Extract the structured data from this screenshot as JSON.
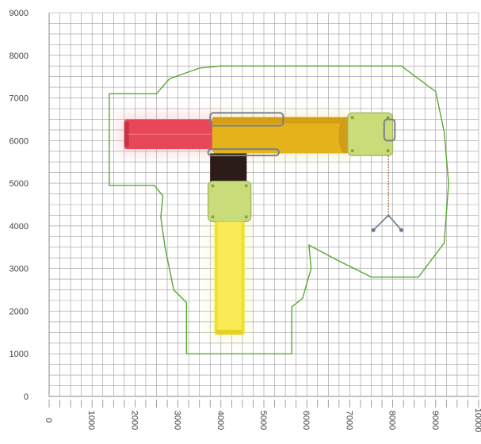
{
  "plan": {
    "x_axis": {
      "min": 0,
      "max": 10000,
      "grid_step": 250,
      "ticks": [
        0,
        1000,
        2000,
        3000,
        4000,
        5000,
        6000,
        7000,
        8000,
        9000,
        10000
      ],
      "tick_labels": [
        "0",
        "1000",
        "2000",
        "3000",
        "4000",
        "5000",
        "6000",
        "7000",
        "8000",
        "9000",
        "10000"
      ]
    },
    "y_axis": {
      "min": 0,
      "max": 9000,
      "grid_step": 250,
      "ticks": [
        0,
        1000,
        2000,
        3000,
        4000,
        5000,
        6000,
        7000,
        8000,
        9000
      ],
      "tick_labels": [
        "0",
        "1000",
        "2000",
        "3000",
        "4000",
        "5000",
        "6000",
        "7000",
        "8000",
        "9000"
      ]
    },
    "colors": {
      "grid": "#9a9a9a",
      "safety_zone": "#5aa832",
      "tunnel_red": "#e8475a",
      "tunnel_yellow": "#e4b21a",
      "slide_yellow": "#f2e02a",
      "panel_green": "#c8dc7a",
      "panel_dark": "#2b1c17",
      "hardware": "#7a7f8c",
      "rope": "#a06a50"
    },
    "components": [
      {
        "name": "red-tube-tunnel",
        "x0": 1750,
        "y0": 5800,
        "x1": 3800,
        "y1": 6500,
        "color": "#e8475a"
      },
      {
        "name": "yellow-tube-tunnel",
        "x0": 3800,
        "y0": 5700,
        "x1": 7000,
        "y1": 6550,
        "color": "#e4b21a"
      },
      {
        "name": "dark-platform",
        "x0": 3750,
        "y0": 4950,
        "x1": 4600,
        "y1": 5700,
        "color": "#2b1c17"
      },
      {
        "name": "green-panel-center",
        "x0": 3700,
        "y0": 4100,
        "x1": 4700,
        "y1": 5050,
        "color": "#c8dc7a"
      },
      {
        "name": "green-panel-right",
        "x0": 6950,
        "y0": 5650,
        "x1": 8000,
        "y1": 6650,
        "color": "#c8dc7a"
      },
      {
        "name": "yellow-slide",
        "x0": 3850,
        "y0": 1450,
        "x1": 4550,
        "y1": 4100,
        "color": "#f2e02a"
      }
    ]
  }
}
